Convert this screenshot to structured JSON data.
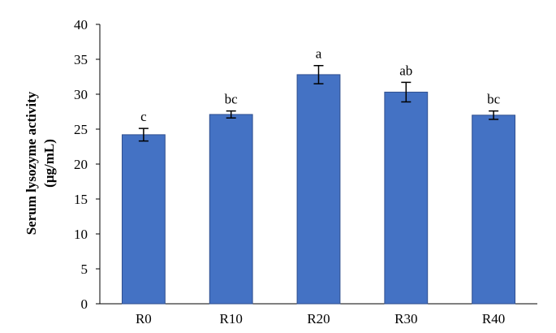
{
  "chart_data": {
    "type": "bar",
    "title": "",
    "xlabel": "",
    "ylabel": [
      "Serum lysozyme activity",
      "(µg/mL)"
    ],
    "ylim": [
      0,
      40
    ],
    "yticks": [
      0,
      5,
      10,
      15,
      20,
      25,
      30,
      35,
      40
    ],
    "grid": false,
    "legend": "none",
    "categories": [
      "R0",
      "R10",
      "R20",
      "R30",
      "R40"
    ],
    "values": [
      24.2,
      27.1,
      32.8,
      30.3,
      27.0
    ],
    "errors": [
      0.9,
      0.5,
      1.3,
      1.4,
      0.6
    ],
    "significance_letters": [
      "c",
      "bc",
      "a",
      "ab",
      "bc"
    ],
    "bar_color": "#4472C4",
    "bar_edge_color": "#2F4F8F"
  }
}
